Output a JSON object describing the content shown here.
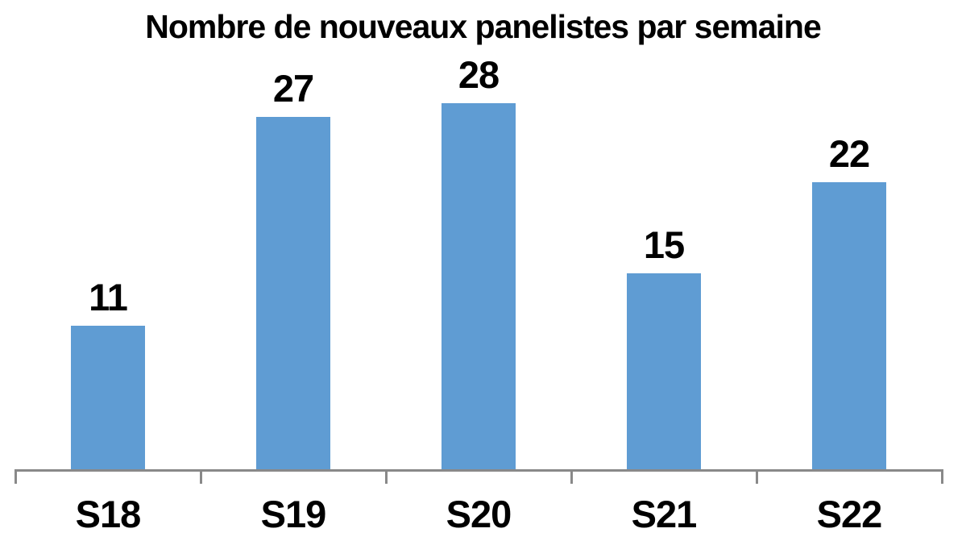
{
  "chart_data": {
    "type": "bar",
    "title": "Nombre de nouveaux panelistes par semaine",
    "categories": [
      "S18",
      "S19",
      "S20",
      "S21",
      "S22"
    ],
    "values": [
      11,
      27,
      28,
      15,
      22
    ],
    "xlabel": "",
    "ylabel": "",
    "ylim": [
      0,
      35
    ],
    "grid": false,
    "legend": "none",
    "data_labels": true,
    "colors": {
      "bar": "#5F9CD3",
      "axis": "#898989",
      "text": "#000000",
      "background": "#FFFFFF"
    }
  }
}
